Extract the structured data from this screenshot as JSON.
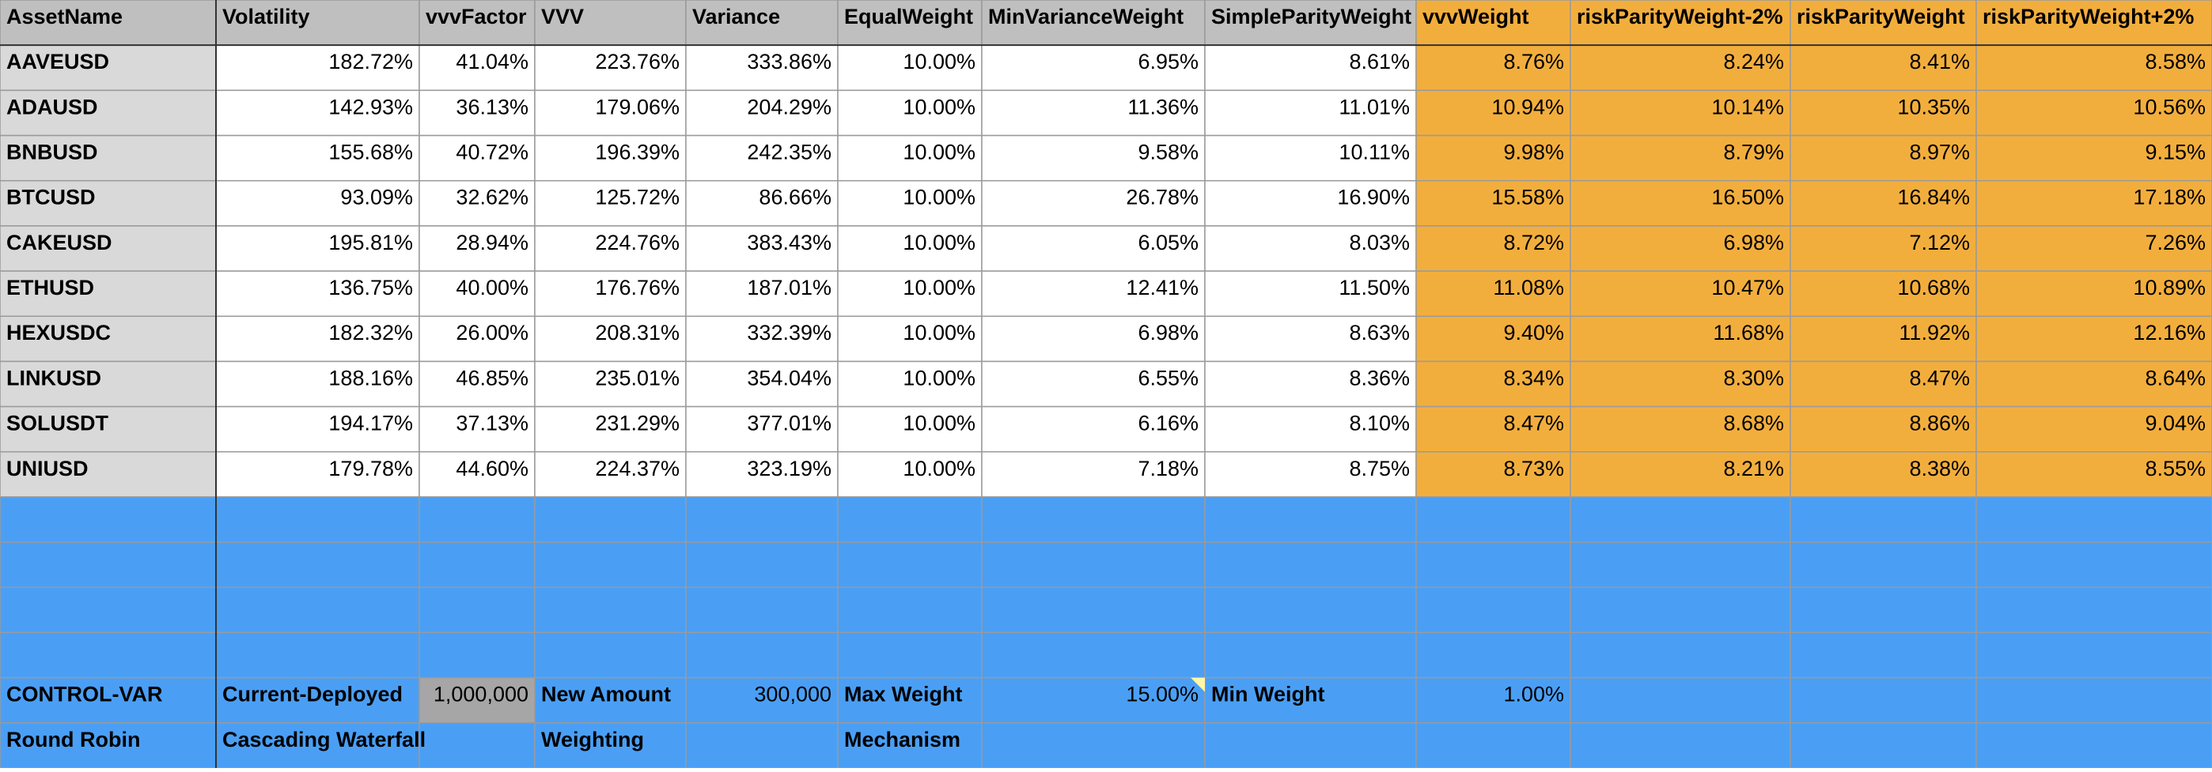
{
  "table": {
    "columns": [
      "AssetName",
      "Volatility",
      "vvvFactor",
      "VVV",
      "Variance",
      "EqualWeight",
      "MinVarianceWeight",
      "SimpleParityWeight",
      "vvvWeight",
      "riskParityWeight-2%",
      "riskParityWeight",
      "riskParityWeight+2%"
    ],
    "rows": [
      [
        "AAVEUSD",
        "182.72%",
        "41.04%",
        "223.76%",
        "333.86%",
        "10.00%",
        "6.95%",
        "8.61%",
        "8.76%",
        "8.24%",
        "8.41%",
        "8.58%"
      ],
      [
        "ADAUSD",
        "142.93%",
        "36.13%",
        "179.06%",
        "204.29%",
        "10.00%",
        "11.36%",
        "11.01%",
        "10.94%",
        "10.14%",
        "10.35%",
        "10.56%"
      ],
      [
        "BNBUSD",
        "155.68%",
        "40.72%",
        "196.39%",
        "242.35%",
        "10.00%",
        "9.58%",
        "10.11%",
        "9.98%",
        "8.79%",
        "8.97%",
        "9.15%"
      ],
      [
        "BTCUSD",
        "93.09%",
        "32.62%",
        "125.72%",
        "86.66%",
        "10.00%",
        "26.78%",
        "16.90%",
        "15.58%",
        "16.50%",
        "16.84%",
        "17.18%"
      ],
      [
        "CAKEUSD",
        "195.81%",
        "28.94%",
        "224.76%",
        "383.43%",
        "10.00%",
        "6.05%",
        "8.03%",
        "8.72%",
        "6.98%",
        "7.12%",
        "7.26%"
      ],
      [
        "ETHUSD",
        "136.75%",
        "40.00%",
        "176.76%",
        "187.01%",
        "10.00%",
        "12.41%",
        "11.50%",
        "11.08%",
        "10.47%",
        "10.68%",
        "10.89%"
      ],
      [
        "HEXUSDC",
        "182.32%",
        "26.00%",
        "208.31%",
        "332.39%",
        "10.00%",
        "6.98%",
        "8.63%",
        "9.40%",
        "11.68%",
        "11.92%",
        "12.16%"
      ],
      [
        "LINKUSD",
        "188.16%",
        "46.85%",
        "235.01%",
        "354.04%",
        "10.00%",
        "6.55%",
        "8.36%",
        "8.34%",
        "8.30%",
        "8.47%",
        "8.64%"
      ],
      [
        "SOLUSDT",
        "194.17%",
        "37.13%",
        "231.29%",
        "377.01%",
        "10.00%",
        "6.16%",
        "8.10%",
        "8.47%",
        "8.68%",
        "8.86%",
        "9.04%"
      ],
      [
        "UNIUSD",
        "179.78%",
        "44.60%",
        "224.37%",
        "323.19%",
        "10.00%",
        "7.18%",
        "8.75%",
        "8.73%",
        "8.21%",
        "8.38%",
        "8.55%"
      ]
    ]
  },
  "controls": [
    "CONTROL-VAR",
    "Current-Deployed",
    "1,000,000",
    "New Amount",
    "300,000",
    "Max Weight",
    "15.00%",
    "Min Weight",
    "1.00%"
  ],
  "footer": [
    "Round Robin",
    "Cascading Waterfall",
    "Weighting",
    "Mechanism"
  ]
}
